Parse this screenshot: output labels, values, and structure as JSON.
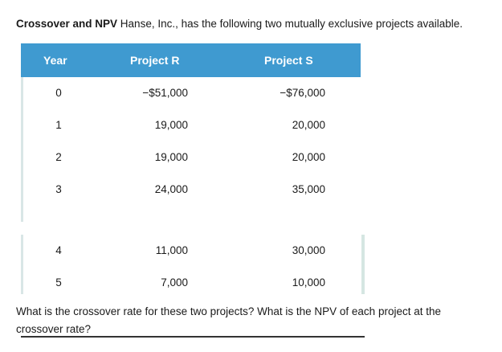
{
  "intro": {
    "bold": "Crossover and NPV",
    "text": " Hanse, Inc., has the following two mutually exclusive projects available."
  },
  "table": {
    "headers": {
      "year": "Year",
      "project_r": "Project R",
      "project_s": "Project S"
    },
    "header_color": "#3f9ad0",
    "rows": [
      {
        "year": "0",
        "r": "−$51,000",
        "s": "−$76,000"
      },
      {
        "year": "1",
        "r": "19,000",
        "s": "20,000"
      },
      {
        "year": "2",
        "r": "19,000",
        "s": "20,000"
      },
      {
        "year": "3",
        "r": "24,000",
        "s": "35,000"
      },
      {
        "year": "4",
        "r": "11,000",
        "s": "30,000"
      },
      {
        "year": "5",
        "r": "7,000",
        "s": "10,000"
      }
    ]
  },
  "question": {
    "line1": "What is the crossover rate for these two projects? What is the NPV of each project at the",
    "line2": "crossover rate?"
  }
}
